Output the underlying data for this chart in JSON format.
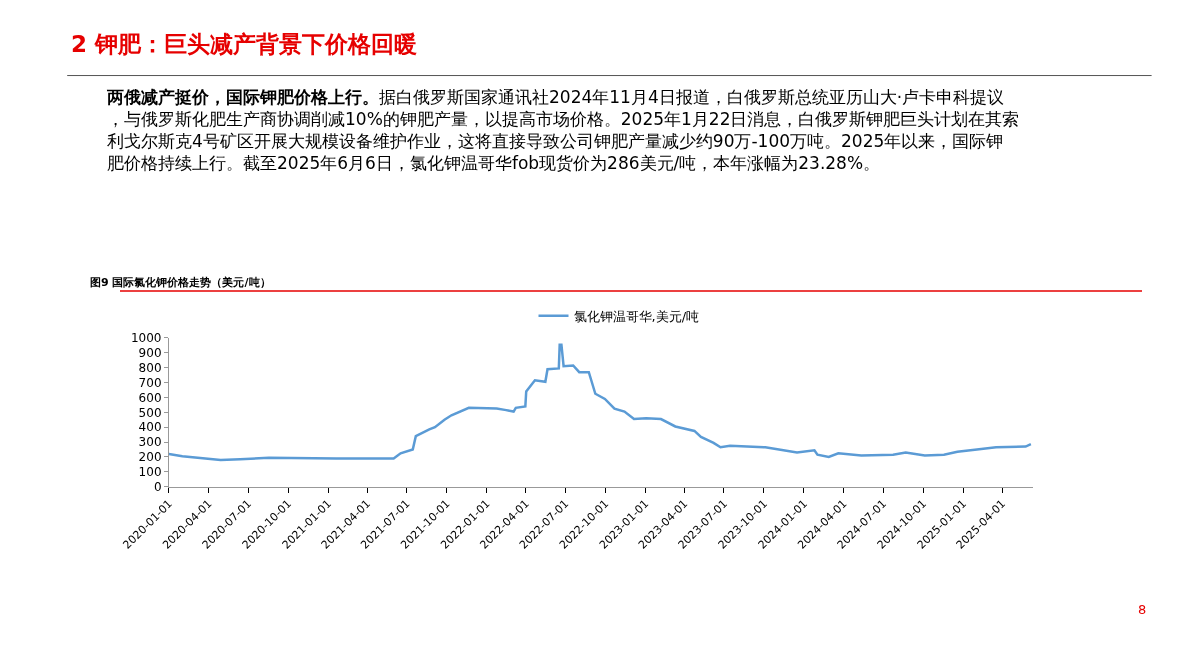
{
  "chart_data": {
    "type": "line",
    "title": "2 钾肥：巨头减产背景下价格回暖",
    "subtitle": "图9 国际氯化钾价格走势（美元/吨）",
    "annotations": [
      "两俄减产挺价，国际钾肥价格上行。",
      "据白俄罗斯国家通讯社2024年11月4日报道，白俄罗斯总统亚历山大·卢卡申科提议，与俄罗斯化肥生产商协调削减10%的钾肥产量，以提高市场价格。2025年1月22日消息，白俄罗斯钾肥巨头计划在其索利戈尔斯克4号矿区开展大规模设备维护作业，这将直接导致公司钾肥产量减少约90万-100万吨。2025年以来，国际钾肥价格持续上行。截至2025年6月6日，氯化钾温哥华fob现货价为286美元/吨，本年涨幅为23.28%。",
      "8"
    ],
    "x": [
      "2020-01-01",
      "2020-02-01",
      "2020-04-29",
      "2020-06-13",
      "2020-08-18",
      "2021-01-20",
      "2021-03-27",
      "2021-06-01",
      "2021-06-17",
      "2021-07-15",
      "2021-07-22",
      "2021-08-22",
      "2021-09-04",
      "2021-09-26",
      "2021-10-12",
      "2021-11-21",
      "2022-01-24",
      "2022-02-15",
      "2022-03-04",
      "2022-03-09",
      "2022-03-31",
      "2022-04-02",
      "2022-04-22",
      "2022-05-16",
      "2022-05-21",
      "2022-06-16",
      "2022-06-18",
      "2022-06-22",
      "2022-06-27",
      "2022-07-19",
      "2022-08-02",
      "2022-08-24",
      "2022-09-08",
      "2022-09-30",
      "2022-10-22",
      "2022-11-14",
      "2022-12-06",
      "2023-01-03",
      "2023-02-06",
      "2023-03-11",
      "2023-04-24",
      "2023-05-09",
      "2023-06-07",
      "2023-06-23",
      "2023-07-15",
      "2023-10-04",
      "2023-12-16",
      "2024-01-25",
      "2024-02-01",
      "2024-02-27",
      "2024-03-20",
      "2024-05-12",
      "2024-07-24",
      "2024-08-22",
      "2024-10-05",
      "2024-11-18",
      "2024-12-19",
      "2025-02-02",
      "2025-03-18",
      "2025-05-25",
      "2025-06-06"
    ],
    "series": [
      {
        "name": "氯化钾温哥华,美元/吨",
        "color": "#5b9bd5",
        "values": [
          220,
          205,
          180,
          185,
          195,
          190,
          190,
          190,
          225,
          250,
          340,
          385,
          400,
          450,
          480,
          530,
          525,
          515,
          505,
          530,
          540,
          640,
          715,
          705,
          790,
          795,
          955,
          955,
          810,
          815,
          770,
          770,
          625,
          590,
          525,
          505,
          455,
          460,
          455,
          405,
          375,
          335,
          295,
          265,
          275,
          265,
          230,
          245,
          215,
          200,
          225,
          210,
          215,
          230,
          210,
          215,
          235,
          250,
          265,
          270,
          286
        ]
      }
    ],
    "xlim": [
      "2020-01-01",
      "2025-06-10"
    ],
    "xticks": [
      "2020-01-01",
      "2020-04-01",
      "2020-07-01",
      "2020-10-01",
      "2021-01-01",
      "2021-04-01",
      "2021-07-01",
      "2021-10-01",
      "2022-01-01",
      "2022-04-01",
      "2022-07-01",
      "2022-10-01",
      "2023-01-01",
      "2023-04-01",
      "2023-07-01",
      "2023-10-01",
      "2024-01-01",
      "2024-04-01",
      "2024-07-01",
      "2024-10-01",
      "2025-01-01",
      "2025-04-01"
    ],
    "ylim": [
      0,
      1000
    ],
    "yticks": [
      0,
      100,
      200,
      300,
      400,
      500,
      600,
      700,
      800,
      900,
      1000
    ],
    "legend": "top",
    "marker": "none",
    "line_style": "solid"
  }
}
